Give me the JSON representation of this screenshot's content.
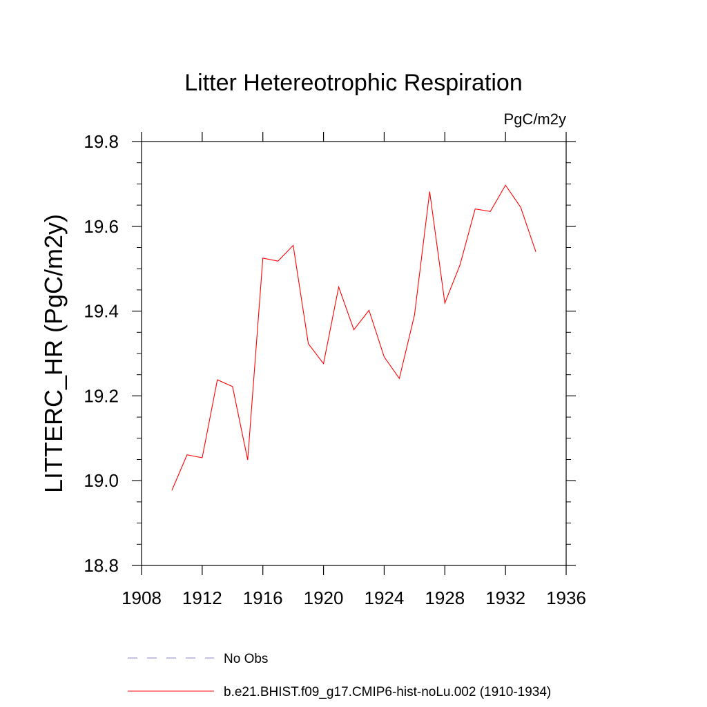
{
  "chart_data": {
    "type": "line",
    "title": "Litter Hetereotrophic Respiration",
    "units": "PgC/m2y",
    "xlabel": "",
    "ylabel": "LITTERC_HR  (PgC/m2y)",
    "xlim": [
      1908,
      1936
    ],
    "ylim": [
      18.8,
      19.8
    ],
    "xticks": [
      1908,
      1912,
      1916,
      1920,
      1924,
      1928,
      1932,
      1936
    ],
    "xtick_labels": [
      "1908",
      "1912",
      "1916",
      "1920",
      "1924",
      "1928",
      "1932",
      "1936"
    ],
    "yticks": [
      18.8,
      19.0,
      19.2,
      19.4,
      19.6,
      19.8
    ],
    "ytick_labels": [
      "18.8",
      "19.0",
      "19.2",
      "19.4",
      "19.6",
      "19.8"
    ],
    "grid": false,
    "legend_position": "bottom",
    "series": [
      {
        "name": "No Obs",
        "style": "dashed",
        "color": "#8a87c6",
        "x": [],
        "y": []
      },
      {
        "name": "b.e21.BHIST.f09_g17.CMIP6-hist-noLu.002 (1910-1934)",
        "style": "solid",
        "color": "#ff0000",
        "x": [
          1910,
          1911,
          1912,
          1913,
          1914,
          1915,
          1916,
          1917,
          1918,
          1919,
          1920,
          1921,
          1922,
          1923,
          1924,
          1925,
          1926,
          1927,
          1928,
          1929,
          1930,
          1931,
          1932,
          1933,
          1934
        ],
        "y": [
          18.977,
          19.061,
          19.054,
          19.238,
          19.222,
          19.049,
          19.525,
          19.518,
          19.555,
          19.323,
          19.276,
          19.457,
          19.356,
          19.402,
          19.292,
          19.241,
          19.391,
          19.682,
          19.419,
          19.509,
          19.641,
          19.635,
          19.697,
          19.645,
          19.54
        ]
      }
    ]
  }
}
